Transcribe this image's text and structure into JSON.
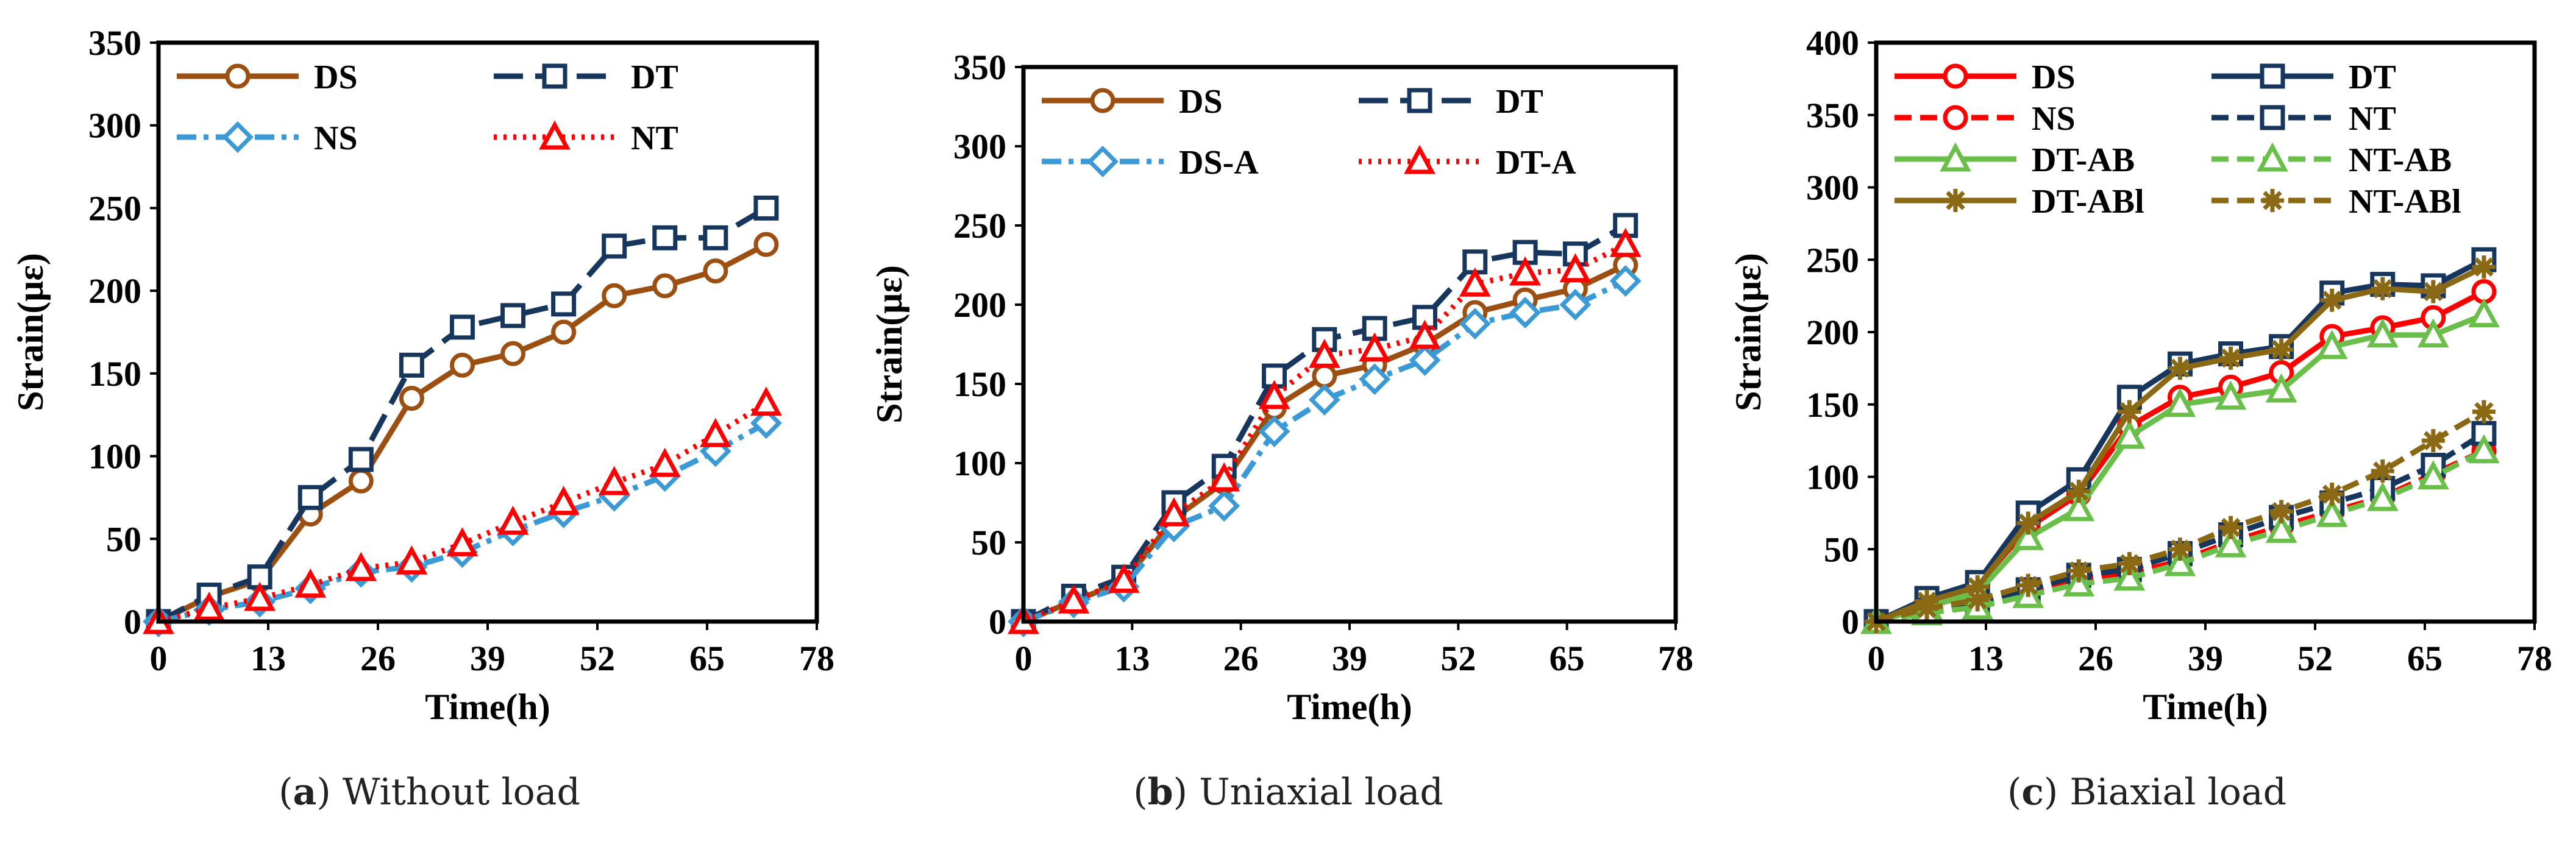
{
  "panel_captions": [
    {
      "open": "(",
      "letter": "a",
      "close": ")",
      "text": " Without load"
    },
    {
      "open": "(",
      "letter": "b",
      "close": ")",
      "text": " Uniaxial load"
    },
    {
      "open": "(",
      "letter": "c",
      "close": ")",
      "text": " Biaxial load"
    }
  ],
  "chart_data": [
    {
      "type": "line",
      "title": "Without load",
      "xlabel": "Time(h)",
      "ylabel": "Strain(με)",
      "xlim": [
        0,
        78
      ],
      "ylim": [
        0,
        350
      ],
      "xticks": [
        0,
        13,
        26,
        39,
        52,
        65,
        78
      ],
      "yticks": [
        0,
        50,
        100,
        150,
        200,
        250,
        300,
        350
      ],
      "legend": "top-left, two columns",
      "x": [
        0,
        6,
        12,
        18,
        24,
        30,
        36,
        42,
        48,
        54,
        60,
        66,
        72
      ],
      "series": [
        {
          "name": "DS",
          "color": "#9c4f10",
          "dash": "solid",
          "marker": "circle",
          "values": [
            0,
            15,
            25,
            65,
            85,
            135,
            155,
            162,
            175,
            197,
            203,
            212,
            228
          ]
        },
        {
          "name": "DT",
          "color": "#17365d",
          "dash": "longdash",
          "marker": "square",
          "values": [
            0,
            16,
            27,
            75,
            98,
            155,
            178,
            185,
            192,
            227,
            232,
            232,
            250
          ]
        },
        {
          "name": "NS",
          "color": "#3b9ad6",
          "dash": "dashdot",
          "marker": "diamond",
          "values": [
            0,
            7,
            12,
            20,
            30,
            33,
            42,
            55,
            66,
            76,
            88,
            103,
            120
          ]
        },
        {
          "name": "NT",
          "color": "#ff0000",
          "dash": "dotted",
          "marker": "triangle",
          "values": [
            0,
            8,
            14,
            22,
            32,
            36,
            47,
            60,
            72,
            84,
            95,
            113,
            132
          ]
        }
      ]
    },
    {
      "type": "line",
      "title": "Uniaxial load",
      "xlabel": "Time(h)",
      "ylabel": "Strain(με)",
      "xlim": [
        0,
        78
      ],
      "ylim": [
        0,
        350
      ],
      "xticks": [
        0,
        13,
        26,
        39,
        52,
        65,
        78
      ],
      "yticks": [
        0,
        50,
        100,
        150,
        200,
        250,
        300,
        350
      ],
      "legend": "top-left, two columns",
      "x": [
        0,
        6,
        12,
        18,
        24,
        30,
        36,
        42,
        48,
        54,
        60,
        66,
        72
      ],
      "series": [
        {
          "name": "DS",
          "color": "#9c4f10",
          "dash": "solid",
          "marker": "circle",
          "values": [
            0,
            13,
            25,
            65,
            88,
            135,
            155,
            162,
            175,
            195,
            203,
            210,
            225
          ]
        },
        {
          "name": "DT",
          "color": "#17365d",
          "dash": "longdash",
          "marker": "square",
          "values": [
            0,
            16,
            28,
            75,
            98,
            155,
            178,
            185,
            192,
            227,
            233,
            232,
            250
          ]
        },
        {
          "name": "DS-A",
          "color": "#3b9ad6",
          "dash": "dashdot",
          "marker": "diamond",
          "values": [
            0,
            12,
            22,
            60,
            73,
            120,
            140,
            153,
            165,
            188,
            195,
            200,
            215
          ]
        },
        {
          "name": "DT-A",
          "color": "#ff0000",
          "dash": "dotted",
          "marker": "triangle",
          "values": [
            0,
            13,
            26,
            68,
            90,
            142,
            168,
            172,
            180,
            213,
            220,
            222,
            238
          ]
        }
      ]
    },
    {
      "type": "line",
      "title": "Biaxial load",
      "xlabel": "Time(h)",
      "ylabel": "Strain(με)",
      "xlim": [
        0,
        78
      ],
      "ylim": [
        0,
        400
      ],
      "xticks": [
        0,
        13,
        26,
        39,
        52,
        65,
        78
      ],
      "yticks": [
        0,
        50,
        100,
        150,
        200,
        250,
        300,
        350,
        400
      ],
      "legend": "top-left, two columns",
      "x": [
        0,
        6,
        12,
        18,
        24,
        30,
        36,
        42,
        48,
        54,
        60,
        66,
        72
      ],
      "series": [
        {
          "name": "DS",
          "color": "#ff0000",
          "dash": "solid",
          "marker": "circle",
          "values": [
            0,
            15,
            25,
            65,
            88,
            135,
            155,
            162,
            172,
            197,
            203,
            210,
            228
          ]
        },
        {
          "name": "DT",
          "color": "#17365d",
          "dash": "solid",
          "marker": "square",
          "values": [
            0,
            16,
            27,
            75,
            98,
            155,
            178,
            185,
            190,
            227,
            233,
            232,
            250
          ]
        },
        {
          "name": "NS",
          "color": "#ff0000",
          "dash": "dashed",
          "marker": "circle",
          "values": [
            0,
            7,
            12,
            20,
            30,
            33,
            42,
            55,
            66,
            76,
            86,
            102,
            118
          ]
        },
        {
          "name": "NT",
          "color": "#17365d",
          "dash": "dashed",
          "marker": "square",
          "values": [
            0,
            8,
            13,
            22,
            32,
            36,
            47,
            60,
            72,
            82,
            92,
            108,
            130
          ]
        },
        {
          "name": "DT-AB",
          "color": "#6abf4b",
          "dash": "solid",
          "marker": "triangle",
          "values": [
            0,
            10,
            20,
            58,
            78,
            128,
            150,
            155,
            160,
            190,
            198,
            198,
            212
          ]
        },
        {
          "name": "NT-AB",
          "color": "#6abf4b",
          "dash": "dashed",
          "marker": "triangle",
          "values": [
            0,
            6,
            10,
            18,
            26,
            30,
            40,
            53,
            63,
            74,
            85,
            100,
            118
          ]
        },
        {
          "name": "DT-ABl",
          "color": "#8b6914",
          "dash": "solid",
          "marker": "star",
          "values": [
            0,
            14,
            24,
            68,
            90,
            145,
            175,
            182,
            188,
            222,
            230,
            228,
            245
          ]
        },
        {
          "name": "NT-ABl",
          "color": "#8b6914",
          "dash": "dashed",
          "marker": "star",
          "values": [
            0,
            9,
            15,
            25,
            35,
            40,
            50,
            65,
            76,
            88,
            104,
            125,
            145
          ]
        }
      ]
    }
  ]
}
